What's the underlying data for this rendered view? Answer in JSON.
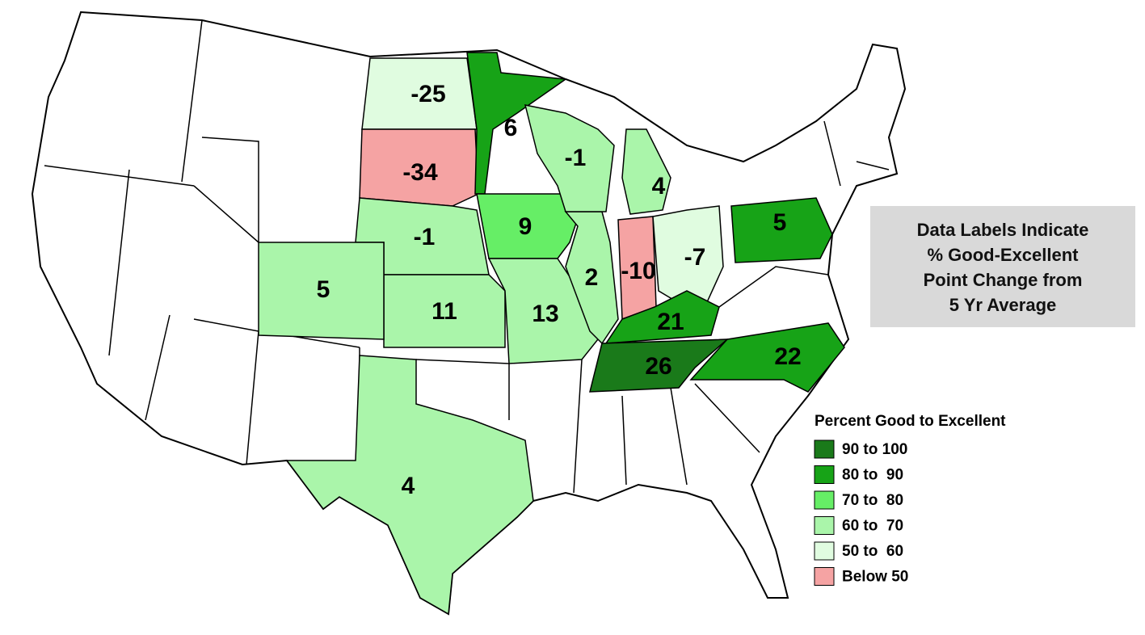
{
  "note_box": {
    "lines": [
      "Data Labels Indicate",
      "% Good-Excellent",
      "Point Change from",
      "5 Yr Average"
    ]
  },
  "legend": {
    "title": "Percent Good to Excellent",
    "items": [
      {
        "label": "90 to 100",
        "color": "#1a7a1a"
      },
      {
        "label": "80 to  90",
        "color": "#17a317"
      },
      {
        "label": "70 to  80",
        "color": "#66ee66"
      },
      {
        "label": "60 to  70",
        "color": "#aaf5aa"
      },
      {
        "label": "50 to  60",
        "color": "#e0fce0"
      },
      {
        "label": "Below 50",
        "color": "#f5a3a3"
      }
    ]
  },
  "states": [
    {
      "value": -25,
      "color": "#e0fce0"
    },
    {
      "value": -34,
      "color": "#f5a3a3"
    },
    {
      "value": 6,
      "color": "#17a317"
    },
    {
      "value": -1,
      "color": "#aaf5aa"
    },
    {
      "value": 11,
      "color": "#aaf5aa"
    },
    {
      "value": 5,
      "color": "#aaf5aa"
    },
    {
      "value": 9,
      "color": "#66ee66"
    },
    {
      "value": 13,
      "color": "#aaf5aa"
    },
    {
      "value": 2,
      "color": "#aaf5aa"
    },
    {
      "value": -1,
      "color": "#aaf5aa"
    },
    {
      "value": 4,
      "color": "#aaf5aa"
    },
    {
      "value": -10,
      "color": "#f5a3a3"
    },
    {
      "value": -7,
      "color": "#e0fce0"
    },
    {
      "value": 5,
      "color": "#17a317"
    },
    {
      "value": 21,
      "color": "#17a317"
    },
    {
      "value": 26,
      "color": "#1a7a1a"
    },
    {
      "value": 22,
      "color": "#17a317"
    },
    {
      "value": 4,
      "color": "#aaf5aa"
    }
  ]
}
